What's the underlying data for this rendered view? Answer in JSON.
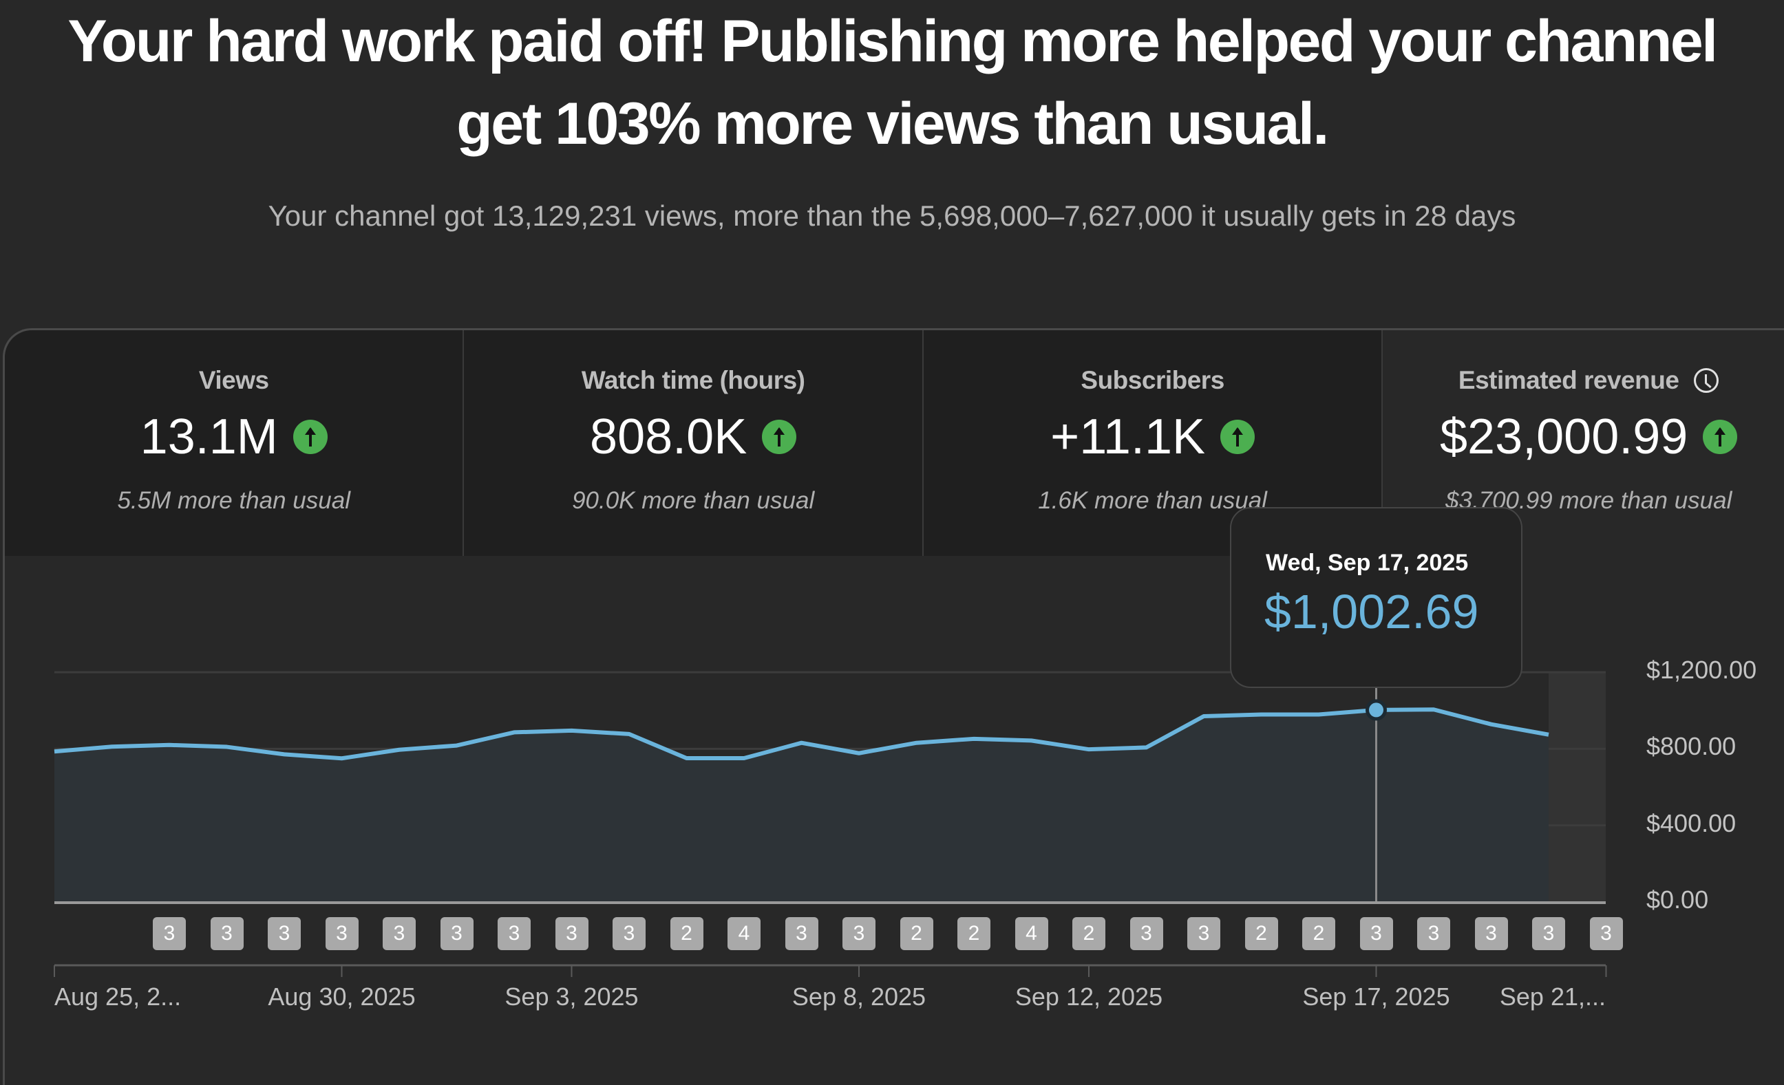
{
  "headline": {
    "line1": "Your hard work paid off! Publishing more helped your channel",
    "line2": "get 103% more views than usual."
  },
  "subtitle": "Your channel got 13,129,231 views, more than the 5,698,000–7,627,000 it usually gets in 28 days",
  "metrics": [
    {
      "title": "Views",
      "value": "13.1M",
      "trend": "up",
      "sub": "5.5M more than usual",
      "selected": false
    },
    {
      "title": "Watch time (hours)",
      "value": "808.0K",
      "trend": "up",
      "sub": "90.0K more than usual",
      "selected": false
    },
    {
      "title": "Subscribers",
      "value": "+11.1K",
      "trend": "up",
      "sub": "1.6K more than usual",
      "selected": false
    },
    {
      "title": "Estimated revenue",
      "value": "$23,000.99",
      "trend": "up",
      "sub": "$3,700.99 more than usual",
      "selected": true,
      "icon": "clock-icon"
    }
  ],
  "tooltip": {
    "date": "Wed, Sep 17, 2025",
    "value": "$1,002.69"
  },
  "colors": {
    "line": "#6ab4dc",
    "trend_up": "#4caf50",
    "background": "#282828",
    "card_bg": "#1f1f1f"
  },
  "chart_data": {
    "type": "area",
    "title": "Estimated revenue",
    "xlabel": "",
    "ylabel": "",
    "ylim": [
      0,
      1200
    ],
    "y_ticks": [
      "$1,200.00",
      "$800.00",
      "$400.00",
      "$0.00"
    ],
    "x_tick_labels": [
      "Aug 25, 2...",
      "Aug 30, 2025",
      "Sep 3, 2025",
      "Sep 8, 2025",
      "Sep 12, 2025",
      "Sep 17, 2025",
      "Sep 21,..."
    ],
    "x": [
      "Aug 25",
      "Aug 26",
      "Aug 27",
      "Aug 28",
      "Aug 29",
      "Aug 30",
      "Aug 31",
      "Sep 1",
      "Sep 2",
      "Sep 3",
      "Sep 4",
      "Sep 5",
      "Sep 6",
      "Sep 7",
      "Sep 8",
      "Sep 9",
      "Sep 10",
      "Sep 11",
      "Sep 12",
      "Sep 13",
      "Sep 14",
      "Sep 15",
      "Sep 16",
      "Sep 17",
      "Sep 18",
      "Sep 19",
      "Sep 20"
    ],
    "series": [
      {
        "name": "Estimated revenue",
        "values": [
          786,
          811,
          820,
          810,
          771,
          750,
          795,
          817,
          886,
          895,
          877,
          751,
          751,
          831,
          777,
          831,
          852,
          843,
          797,
          807,
          970,
          979,
          979,
          1002.69,
          1005,
          928,
          874
        ]
      }
    ],
    "highlighted_point": {
      "x": "Sep 17",
      "value": 1002.69
    },
    "incomplete_region": [
      "Sep 20",
      "Sep 21"
    ],
    "grid": true,
    "uploads_per_day": {
      "dates": [
        "Aug 27",
        "Aug 28",
        "Aug 29",
        "Aug 30",
        "Aug 31",
        "Sep 1",
        "Sep 2",
        "Sep 3",
        "Sep 4",
        "Sep 5",
        "Sep 6",
        "Sep 7",
        "Sep 8",
        "Sep 9",
        "Sep 10",
        "Sep 11",
        "Sep 12",
        "Sep 13",
        "Sep 14",
        "Sep 15",
        "Sep 16",
        "Sep 17",
        "Sep 18",
        "Sep 19",
        "Sep 20",
        "Sep 21"
      ],
      "counts": [
        3,
        3,
        3,
        3,
        3,
        3,
        3,
        3,
        3,
        2,
        4,
        3,
        3,
        2,
        2,
        4,
        2,
        3,
        3,
        2,
        2,
        3,
        3,
        3,
        3,
        3
      ]
    }
  }
}
